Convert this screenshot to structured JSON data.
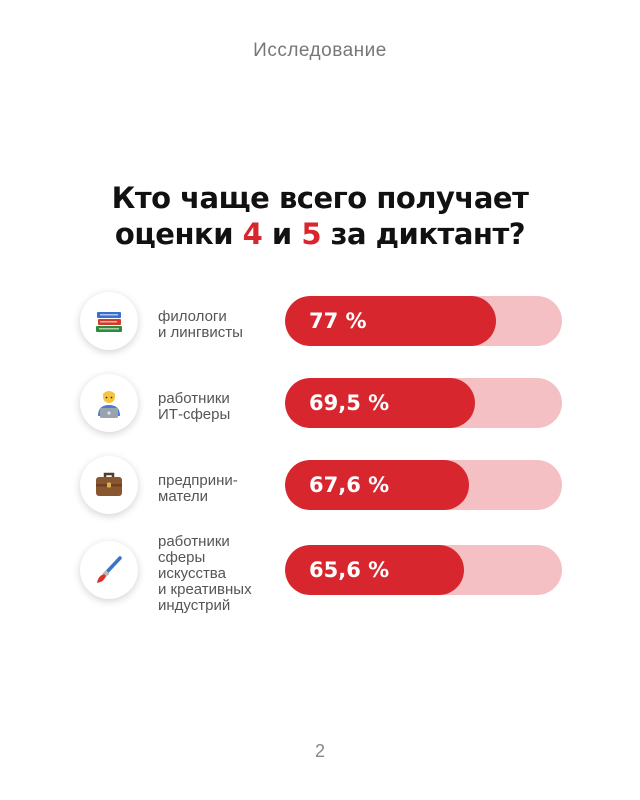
{
  "header": {
    "section": "Исследование"
  },
  "title": {
    "line1": "Кто чаще всего получает",
    "line2_pre": "оценки ",
    "hl1": "4",
    "line2_mid": " и ",
    "hl2": "5",
    "line2_post": " за диктант?"
  },
  "colors": {
    "accent": "#d7262e",
    "track": "#f4c0c3"
  },
  "chart_data": {
    "type": "bar",
    "orientation": "horizontal",
    "title": "Кто чаще всего получает оценки 4 и 5 за диктант?",
    "xlim": [
      0,
      100
    ],
    "unit": "%",
    "categories": [
      "филологи\nи лингвисты",
      "работники\nИТ-сферы",
      "предприни-\nматели",
      "работники\nсферы\nискусства\nи креативных\nиндустрий"
    ],
    "values": [
      77,
      69.5,
      67.6,
      65.6
    ],
    "value_labels": [
      "77 %",
      "69,5 %",
      "67,6 %",
      "65,6 %"
    ],
    "icons": [
      "books-icon",
      "it-worker-icon",
      "briefcase-icon",
      "paintbrush-icon"
    ]
  },
  "footer": {
    "page": "2"
  }
}
